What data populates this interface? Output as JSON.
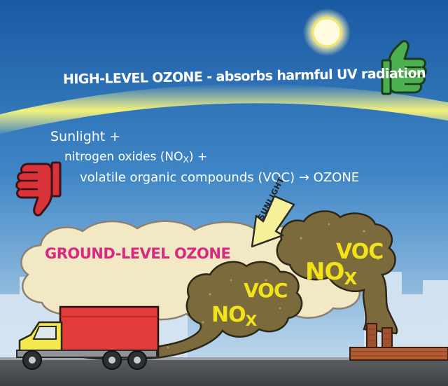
{
  "high_level_ozone": "HIGH-LEVEL OZONE - absorbs harmful UV radiation",
  "equation": {
    "line1": "Sunlight +",
    "line2_prefix": "nitrogen oxides (NO",
    "line2_sub": "X",
    "line2_suffix": ") +",
    "line3": "volatile organic compounds (VOC) → OZONE"
  },
  "ground_level_ozone": "GROUND-LEVEL OZONE",
  "sunlight_arrow_label": "SUNLIGHT",
  "truck_exhaust": {
    "nox": "NO",
    "nox_sub": "X",
    "voc": "VOC"
  },
  "factory_smoke": {
    "nox": "NO",
    "nox_sub": "X",
    "voc": "VOC"
  },
  "icons": {
    "sun": "sun-icon",
    "thumbs_up": "thumbs-up-icon",
    "thumbs_down": "thumbs-down-icon",
    "truck": "truck-icon",
    "factory": "factory-icon"
  },
  "colors": {
    "sky_top": "#1c5ea6",
    "sky_bottom": "#c6dff0",
    "ozone_band": "#f3f27a",
    "ground_ozone_text": "#d9287f",
    "pollutant_text": "#f2e21a",
    "smog": "#7a6a3c",
    "haze": "#f3e8c4",
    "truck_cab": "#f5e84c",
    "truck_box": "#e33a3a",
    "thumbs_up": "#4caf50",
    "thumbs_down": "#d9323a"
  }
}
